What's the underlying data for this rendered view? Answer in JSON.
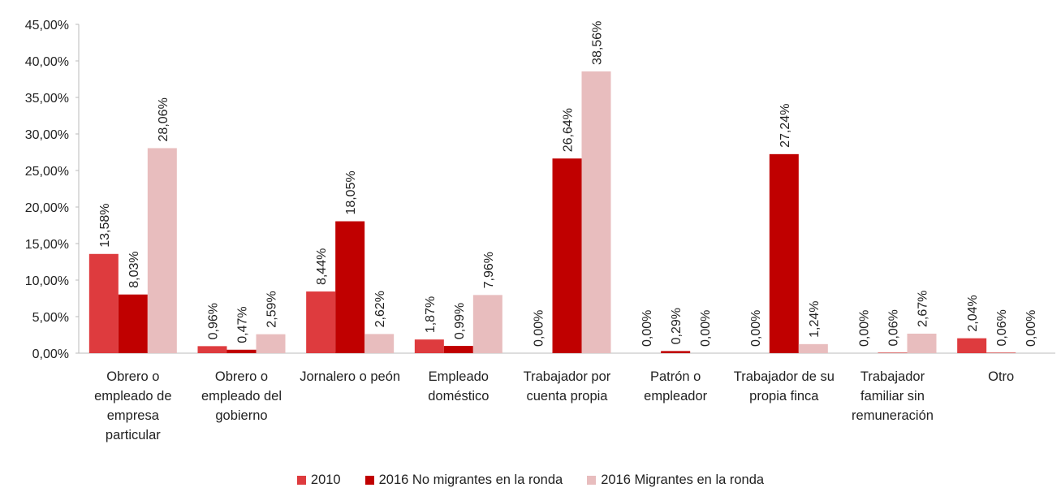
{
  "chart_data": {
    "type": "bar",
    "categories": [
      "Obrero o empleado de empresa particular",
      "Obrero o empleado del gobierno",
      "Jornalero o peón",
      "Empleado doméstico",
      "Trabajador por cuenta propia",
      "Patrón o empleador",
      "Trabajador de su propia finca",
      "Trabajador familiar sin remuneración",
      "Otro"
    ],
    "series": [
      {
        "name": "2010",
        "color": "#de3b3e",
        "values": [
          13.58,
          0.96,
          8.44,
          1.87,
          0,
          0,
          0,
          0,
          2.04
        ],
        "value_labels": [
          "13,58%",
          "0,96%",
          "8,44%",
          "1,87%",
          "0,00%",
          "0,00%",
          "0,00%",
          "0,00%",
          "2,04%"
        ]
      },
      {
        "name": "2016 No migrantes en la ronda",
        "color": "#c00000",
        "values": [
          8.03,
          0.47,
          18.05,
          0.99,
          26.64,
          0.29,
          27.24,
          0.06,
          0.06
        ],
        "value_labels": [
          "8,03%",
          "0,47%",
          "18,05%",
          "0,99%",
          "26,64%",
          "0,29%",
          "27,24%",
          "0,06%",
          "0,06%"
        ]
      },
      {
        "name": "2016 Migrantes en la ronda",
        "color": "#e8bdbe",
        "values": [
          28.06,
          2.59,
          2.62,
          7.96,
          38.56,
          0,
          1.24,
          2.67,
          0
        ],
        "value_labels": [
          "28,06%",
          "2,59%",
          "2,62%",
          "7,96%",
          "38,56%",
          "0,00%",
          "1,24%",
          "2,67%",
          "0,00%"
        ]
      }
    ],
    "ylim": [
      0,
      45
    ],
    "yticks": [
      {
        "value": 0,
        "label": "0,00%"
      },
      {
        "value": 5,
        "label": "5,00%"
      },
      {
        "value": 10,
        "label": "10,00%"
      },
      {
        "value": 15,
        "label": "15,00%"
      },
      {
        "value": 20,
        "label": "20,00%"
      },
      {
        "value": 25,
        "label": "25,00%"
      },
      {
        "value": 30,
        "label": "30,00%"
      },
      {
        "value": 35,
        "label": "35,00%"
      },
      {
        "value": 40,
        "label": "40,00%"
      },
      {
        "value": 45,
        "label": "45,00%"
      }
    ],
    "grid": false,
    "legend": "bottom"
  }
}
